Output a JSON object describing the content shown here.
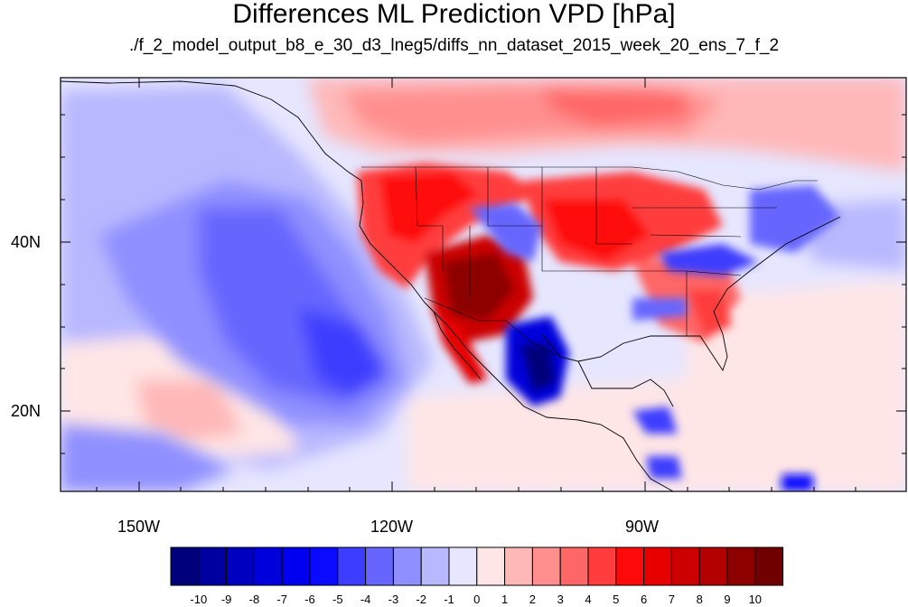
{
  "header": {
    "title": "Differences ML Prediction VPD [hPa]",
    "subtitle": "./f_2_model_output_b8_e_30_d3_lneg5/diffs_nn_dataset_2015_week_20_ens_7_f_2"
  },
  "axes": {
    "lat_labels": [
      "40N",
      "20N"
    ],
    "lon_labels": [
      "150W",
      "120W",
      "90W"
    ]
  },
  "colorbar": {
    "labels": [
      "-10",
      "-9",
      "-8",
      "-7",
      "-6",
      "-5",
      "-4",
      "-3",
      "-2",
      "-1",
      "0",
      "1",
      "2",
      "3",
      "4",
      "5",
      "6",
      "7",
      "8",
      "9",
      "10"
    ],
    "colors": [
      "#00007a",
      "#0000a0",
      "#0000c0",
      "#0000dc",
      "#0000f0",
      "#0a0aff",
      "#3d3dff",
      "#6666ff",
      "#8f8fff",
      "#b8b8ff",
      "#e6e6ff",
      "#ffe6e6",
      "#ffb8b8",
      "#ff8f8f",
      "#ff6666",
      "#ff3d3d",
      "#ff0a0a",
      "#e60000",
      "#cc0000",
      "#b30000",
      "#8c0000",
      "#700000"
    ]
  },
  "map_data": {
    "projection": "cylindrical-equidistant",
    "lon_range": [
      -159.5,
      -60.5
    ],
    "lat_range": [
      10.5,
      59.5
    ],
    "variable": "VPD difference",
    "units": "hPa",
    "regions": [
      {
        "area": "central Pacific off California",
        "value": -4
      },
      {
        "area": "southwest US (Arizona/New Mexico)",
        "value": 9
      },
      {
        "area": "California and Great Basin",
        "value": 6
      },
      {
        "area": "central plains US",
        "value": 5
      },
      {
        "area": "interior Mexico",
        "value": -7
      },
      {
        "area": "western Canada",
        "value": 2
      },
      {
        "area": "tropical Pacific near 20N 140W",
        "value": 3
      },
      {
        "area": "Gulf coast / southeast US",
        "value": 4
      },
      {
        "area": "northeast US",
        "value": -3
      }
    ]
  }
}
